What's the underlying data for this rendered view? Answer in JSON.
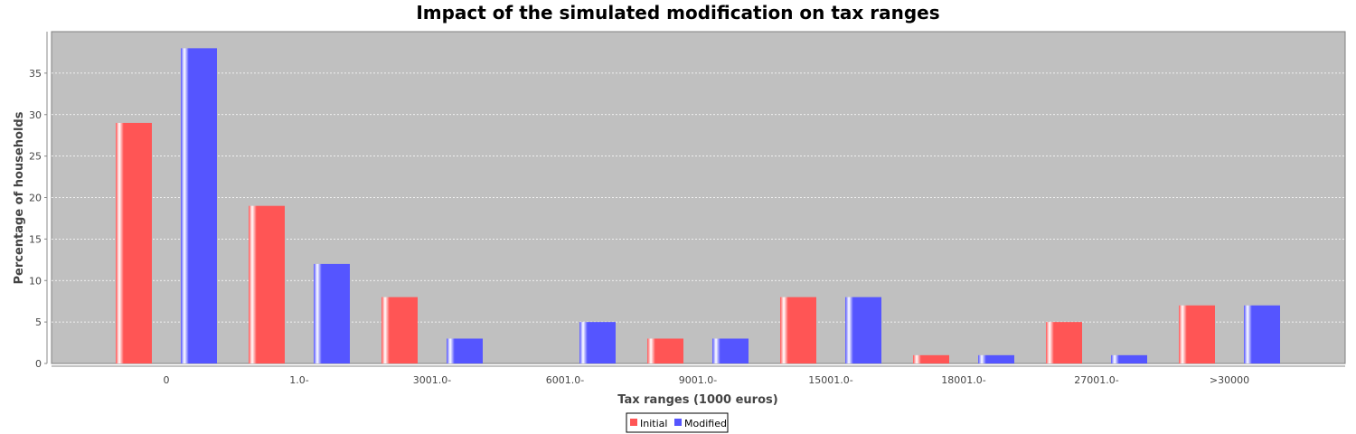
{
  "chart_data": {
    "type": "bar",
    "title": "Impact of the simulated modification on tax ranges",
    "xlabel": "Tax ranges (1000 euros)",
    "ylabel": "Percentage of households",
    "categories": [
      "0",
      "1.0-",
      "3001.0-",
      "6001.0-",
      "9001.0-",
      "15001.0-",
      "18001.0-",
      "27001.0-",
      ">30000"
    ],
    "series": [
      {
        "name": "Initial",
        "color": "#ff5555",
        "values": [
          29,
          19,
          8,
          0,
          3,
          8,
          1,
          5,
          7
        ]
      },
      {
        "name": "Modified",
        "color": "#5555ff",
        "values": [
          38,
          12,
          3,
          5,
          3,
          8,
          1,
          1,
          7
        ]
      }
    ],
    "ylim": [
      0,
      40
    ],
    "yticks": [
      0,
      5,
      10,
      15,
      20,
      25,
      30,
      35
    ],
    "grid": true,
    "plot_background": "#c0c0c0",
    "legend_position": "bottom"
  }
}
